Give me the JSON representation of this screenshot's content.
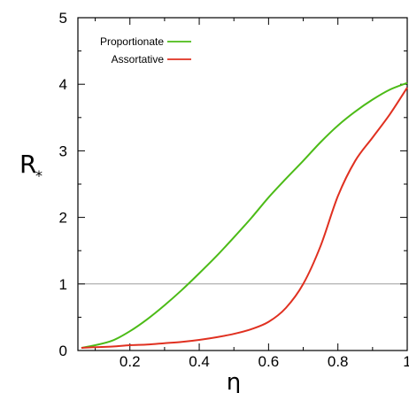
{
  "chart_data": {
    "type": "line",
    "xlabel": "η",
    "ylabel_main": "R",
    "ylabel_sub": "*",
    "xlim": [
      0.05,
      1.0
    ],
    "ylim": [
      0,
      5
    ],
    "x_ticks": [
      0.2,
      0.4,
      0.6,
      0.8,
      1.0
    ],
    "x_tick_labels": [
      "0.2",
      "0.4",
      "0.6",
      "0.8",
      "1"
    ],
    "y_ticks": [
      0,
      1,
      2,
      3,
      4,
      5
    ],
    "y_tick_labels": [
      "0",
      "1",
      "2",
      "3",
      "4",
      "5"
    ],
    "reference_line": {
      "y": 1,
      "color": "#9e9e9e"
    },
    "legend_position": "top-left",
    "series": [
      {
        "name": "Proportionate",
        "color": "#4cbb17",
        "x": [
          0.06,
          0.1,
          0.15,
          0.2,
          0.25,
          0.3,
          0.35,
          0.4,
          0.45,
          0.5,
          0.55,
          0.6,
          0.65,
          0.7,
          0.75,
          0.8,
          0.85,
          0.9,
          0.95,
          1.0
        ],
        "y": [
          0.04,
          0.08,
          0.15,
          0.29,
          0.47,
          0.68,
          0.91,
          1.16,
          1.42,
          1.7,
          1.99,
          2.3,
          2.58,
          2.85,
          3.13,
          3.38,
          3.59,
          3.77,
          3.92,
          4.02
        ]
      },
      {
        "name": "Assortative",
        "color": "#e03020",
        "x": [
          0.06,
          0.1,
          0.15,
          0.2,
          0.25,
          0.3,
          0.35,
          0.4,
          0.45,
          0.5,
          0.55,
          0.6,
          0.65,
          0.7,
          0.75,
          0.8,
          0.85,
          0.9,
          0.95,
          1.0
        ],
        "y": [
          0.04,
          0.05,
          0.06,
          0.08,
          0.09,
          0.11,
          0.13,
          0.16,
          0.2,
          0.25,
          0.32,
          0.43,
          0.64,
          1.0,
          1.57,
          2.32,
          2.85,
          3.2,
          3.55,
          3.95
        ]
      }
    ]
  }
}
